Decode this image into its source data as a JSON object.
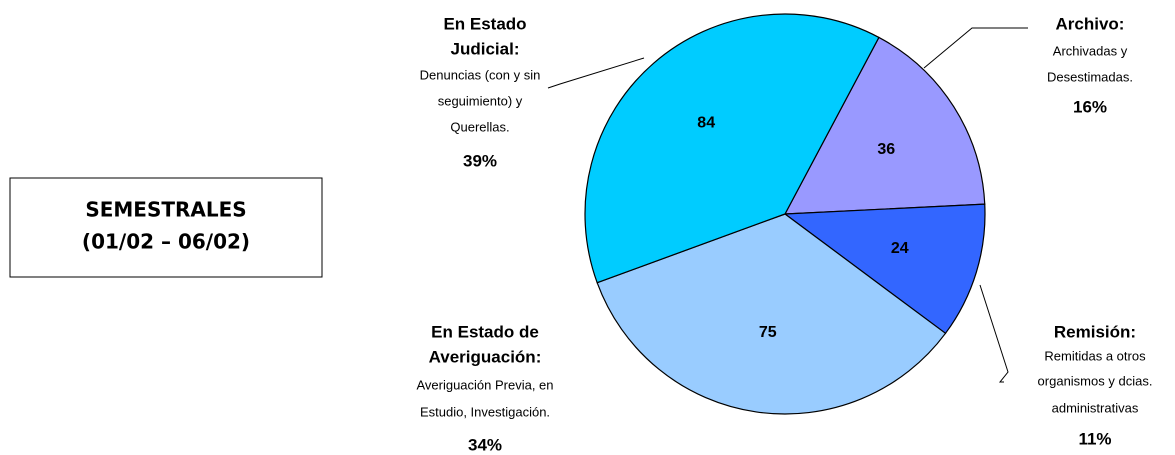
{
  "chart_data": {
    "type": "pie",
    "box_text": [
      "SEMESTRALES",
      "(01/02 – 06/02)"
    ],
    "categories": [
      "Archivo:",
      "Remisión:",
      "Averiguación:",
      "Judicial:"
    ],
    "category_prefix": [
      null,
      null,
      "En Estado de",
      "En Estado"
    ],
    "values": [
      36,
      24,
      75,
      84
    ],
    "colors": [
      "#9999ff",
      "#3366ff",
      "#99ccff",
      "#00ccff"
    ],
    "descriptions": [
      [
        "Archivadas y",
        "Desestimadas."
      ],
      [
        "Remitidas a otros",
        "organismos y dcias.",
        "administrativas"
      ],
      [
        "Averiguación Previa, en",
        "Estudio, Investigación."
      ],
      [
        "Denuncias  (con y sin",
        "seguimiento) y",
        "Querellas."
      ]
    ],
    "percent_labels": [
      "16%",
      "11%",
      "34%",
      "39%"
    ]
  }
}
